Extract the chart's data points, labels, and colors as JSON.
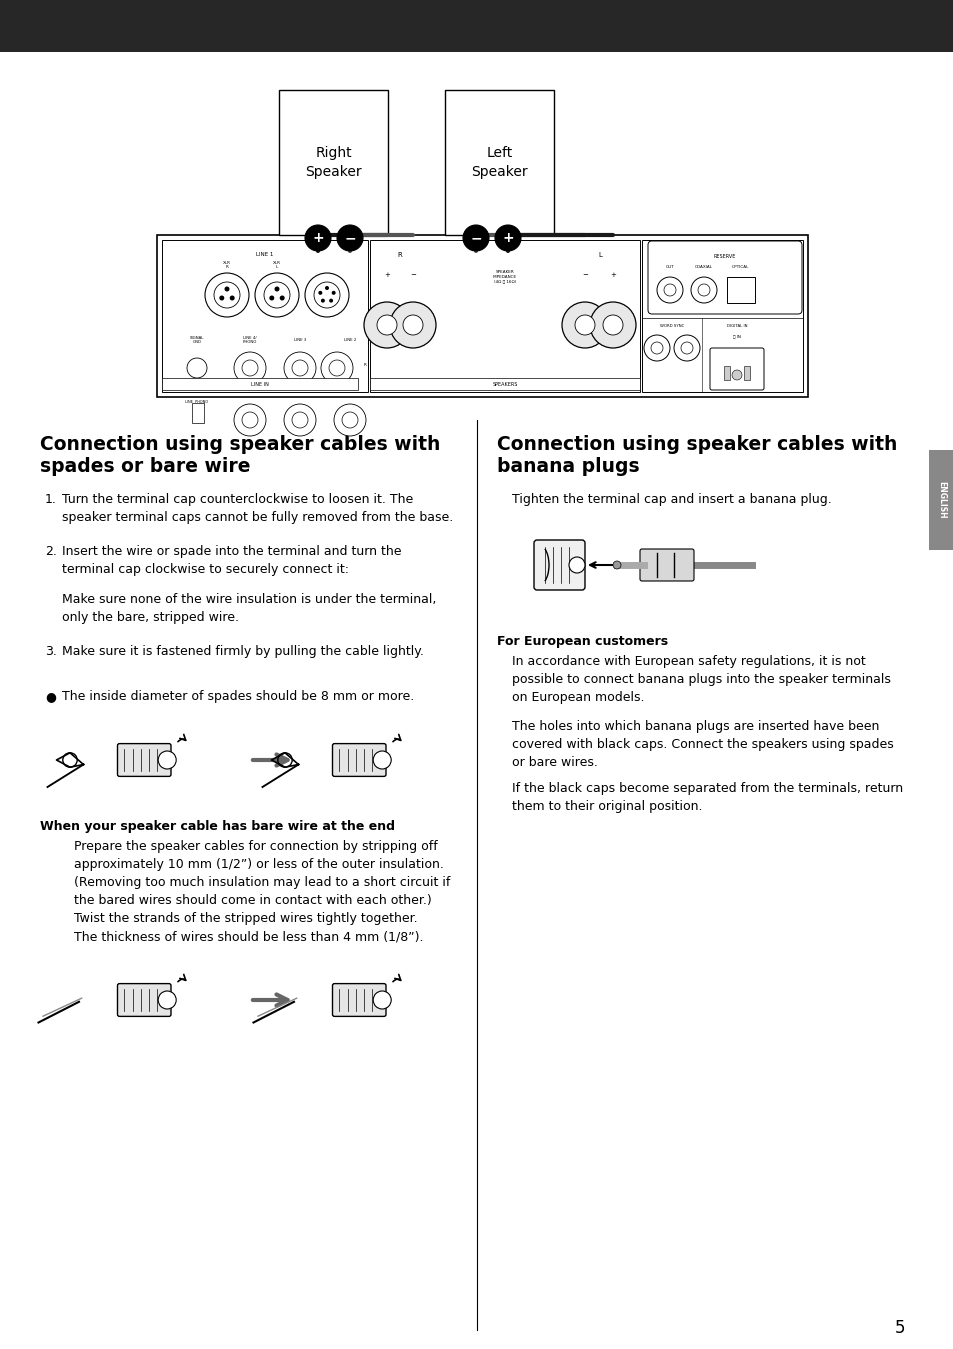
{
  "bg_color": "#ffffff",
  "header_bar_color": "#272727",
  "english_tab_color": "#888888",
  "page_number": "5",
  "left_title_line1": "Connection using speaker cables with",
  "left_title_line2": "spades or bare wire",
  "right_title_line1": "Connection using speaker cables with",
  "right_title_line2": "banana plugs",
  "step1": "1. Turn the terminal cap counterclockwise to loosen it. The\n   speaker terminal caps cannot be fully removed from the base.",
  "step2a": "2. Insert the wire or spade into the terminal and turn the\n   terminal cap clockwise to securely connect it:",
  "step2b": "   Make sure none of the wire insulation is under the terminal,\n   only the bare, stripped wire.",
  "step3": "3. Make sure it is fastened firmly by pulling the cable lightly.",
  "bullet1": "●  The inside diameter of spades should be 8 mm or more.",
  "bare_wire_title": "When your speaker cable has bare wire at the end",
  "bare_wire_body": "   Prepare the speaker cables for connection by stripping off\n   approximately 10 mm (1/2”) or less of the outer insulation.\n   (Removing too much insulation may lead to a short circuit if\n   the bared wires should come in contact with each other.)\n   Twist the strands of the stripped wires tightly together.\n   The thickness of wires should be less than 4 mm (1/8”).",
  "right_intro": "   Tighten the terminal cap and insert a banana plug.",
  "euro_title": "For European customers",
  "euro_p1": "   In accordance with European safety regulations, it is not\n   possible to connect banana plugs into the speaker terminals\n   on European models.",
  "euro_p2": "   The holes into which banana plugs are inserted have been\n   covered with black caps. Connect the speakers using spades\n   or bare wires.",
  "euro_p3": "   If the black caps become separated from the terminals, return\n   them to their original position."
}
